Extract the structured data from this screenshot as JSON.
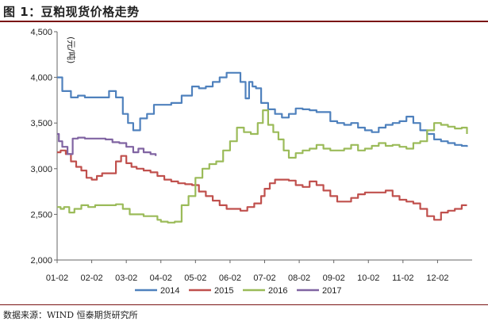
{
  "header": {
    "title": "图 1：豆粕现货价格走势"
  },
  "footer": {
    "source": "数据来源：WIND 恒泰期货研究所"
  },
  "colors": {
    "2014": "#4f81bd",
    "2015": "#c0504d",
    "2016": "#9bbb59",
    "2017": "#8064a2"
  },
  "chart_data": {
    "type": "line",
    "title": "图 1：豆粕现货价格走势",
    "ylabel": "(元/吨)",
    "ylim": [
      2000,
      4500
    ],
    "yticks": [
      2000,
      2500,
      3000,
      3500,
      4000,
      4500
    ],
    "ytick_labels": [
      "2,000",
      "2,500",
      "3,000",
      "3,500",
      "4,000",
      "4,500"
    ],
    "xlim": [
      1,
      13
    ],
    "xticks": [
      1,
      2,
      3,
      4,
      5,
      6,
      7,
      8,
      9,
      10,
      11,
      12
    ],
    "xtick_labels": [
      "01-02",
      "02-02",
      "03-02",
      "04-02",
      "05-02",
      "06-02",
      "07-02",
      "08-02",
      "09-02",
      "10-02",
      "11-02",
      "12-02"
    ],
    "grid": false,
    "legend": "bottom",
    "series": [
      {
        "name": "2014",
        "x": [
          1,
          1.08,
          1.15,
          1.3,
          1.4,
          1.6,
          1.8,
          2.2,
          2.4,
          2.5,
          2.7,
          2.9,
          3.05,
          3.2,
          3.4,
          3.5,
          3.6,
          3.8,
          4.0,
          4.3,
          4.6,
          4.9,
          5.1,
          5.3,
          5.5,
          5.7,
          5.9,
          6.1,
          6.3,
          6.45,
          6.55,
          6.65,
          6.75,
          6.9,
          7.1,
          7.3,
          7.5,
          7.7,
          7.9,
          8.1,
          8.3,
          8.5,
          8.7,
          8.9,
          9.1,
          9.3,
          9.5,
          9.7,
          9.9,
          10.1,
          10.3,
          10.5,
          10.7,
          10.9,
          11.1,
          11.3,
          11.5,
          11.7,
          11.9,
          12.1,
          12.3,
          12.5,
          12.7,
          12.85
        ],
        "values": [
          4000,
          4000,
          3850,
          3850,
          3780,
          3800,
          3780,
          3780,
          3780,
          3850,
          3780,
          3600,
          3500,
          3420,
          3550,
          3550,
          3600,
          3700,
          3700,
          3720,
          3800,
          3900,
          3880,
          3900,
          3950,
          4000,
          4050,
          4050,
          3950,
          3770,
          3950,
          3900,
          3880,
          3720,
          3650,
          3600,
          3560,
          3600,
          3660,
          3650,
          3640,
          3620,
          3620,
          3520,
          3500,
          3480,
          3500,
          3450,
          3420,
          3400,
          3450,
          3480,
          3500,
          3520,
          3570,
          3500,
          3420,
          3380,
          3320,
          3300,
          3280,
          3260,
          3250,
          3240
        ]
      },
      {
        "name": "2015",
        "x": [
          1,
          1.1,
          1.25,
          1.4,
          1.55,
          1.7,
          1.85,
          2.0,
          2.15,
          2.3,
          2.5,
          2.7,
          2.85,
          3.0,
          3.15,
          3.3,
          3.5,
          3.7,
          3.9,
          4.1,
          4.3,
          4.5,
          4.7,
          4.9,
          5.1,
          5.3,
          5.5,
          5.7,
          5.9,
          6.1,
          6.3,
          6.5,
          6.7,
          6.9,
          7.0,
          7.15,
          7.3,
          7.5,
          7.7,
          7.9,
          8.1,
          8.3,
          8.5,
          8.7,
          8.9,
          9.1,
          9.3,
          9.5,
          9.7,
          9.9,
          10.1,
          10.3,
          10.5,
          10.7,
          10.9,
          11.1,
          11.3,
          11.5,
          11.7,
          11.9,
          12.1,
          12.3,
          12.5,
          12.7,
          12.85
        ],
        "values": [
          3180,
          3200,
          3160,
          3080,
          3020,
          2980,
          2900,
          2880,
          2920,
          2950,
          2950,
          3080,
          3140,
          3060,
          3020,
          3000,
          2980,
          2960,
          2920,
          2880,
          2860,
          2840,
          2830,
          2820,
          2750,
          2700,
          2650,
          2600,
          2560,
          2560,
          2540,
          2580,
          2620,
          2700,
          2780,
          2840,
          2880,
          2880,
          2870,
          2820,
          2800,
          2860,
          2820,
          2760,
          2700,
          2640,
          2640,
          2680,
          2720,
          2740,
          2740,
          2740,
          2760,
          2700,
          2660,
          2640,
          2620,
          2560,
          2480,
          2440,
          2520,
          2540,
          2560,
          2600,
          2600
        ]
      },
      {
        "name": "2016",
        "x": [
          1,
          1.1,
          1.2,
          1.35,
          1.5,
          1.7,
          1.9,
          2.1,
          2.3,
          2.5,
          2.7,
          2.9,
          3.1,
          3.3,
          3.5,
          3.7,
          3.9,
          4.0,
          4.2,
          4.4,
          4.6,
          4.8,
          5.0,
          5.2,
          5.4,
          5.6,
          5.8,
          6.0,
          6.2,
          6.4,
          6.6,
          6.8,
          6.95,
          7.1,
          7.25,
          7.4,
          7.55,
          7.7,
          7.9,
          8.1,
          8.3,
          8.5,
          8.7,
          8.9,
          9.1,
          9.3,
          9.5,
          9.7,
          9.9,
          10.1,
          10.3,
          10.5,
          10.7,
          10.9,
          11.1,
          11.3,
          11.5,
          11.7,
          11.9,
          12.1,
          12.3,
          12.5,
          12.7,
          12.85
        ],
        "values": [
          2580,
          2560,
          2580,
          2520,
          2560,
          2600,
          2580,
          2600,
          2600,
          2600,
          2610,
          2560,
          2500,
          2500,
          2480,
          2480,
          2440,
          2420,
          2410,
          2420,
          2600,
          2700,
          2900,
          3000,
          3050,
          3080,
          3200,
          3300,
          3450,
          3400,
          3380,
          3500,
          3640,
          3480,
          3400,
          3320,
          3200,
          3120,
          3170,
          3200,
          3220,
          3260,
          3220,
          3200,
          3200,
          3220,
          3260,
          3200,
          3220,
          3250,
          3280,
          3250,
          3260,
          3240,
          3220,
          3280,
          3300,
          3420,
          3500,
          3480,
          3460,
          3440,
          3450,
          3380
        ]
      },
      {
        "name": "2017",
        "x": [
          1,
          1.05,
          1.15,
          1.3,
          1.45,
          1.6,
          1.8,
          2.0,
          2.2,
          2.4,
          2.6,
          2.8,
          3.0,
          3.2,
          3.35,
          3.5,
          3.7,
          3.85
        ],
        "values": [
          3380,
          3300,
          3240,
          3160,
          3330,
          3340,
          3330,
          3330,
          3330,
          3320,
          3290,
          3280,
          3240,
          3180,
          3220,
          3180,
          3160,
          3140
        ]
      }
    ]
  }
}
